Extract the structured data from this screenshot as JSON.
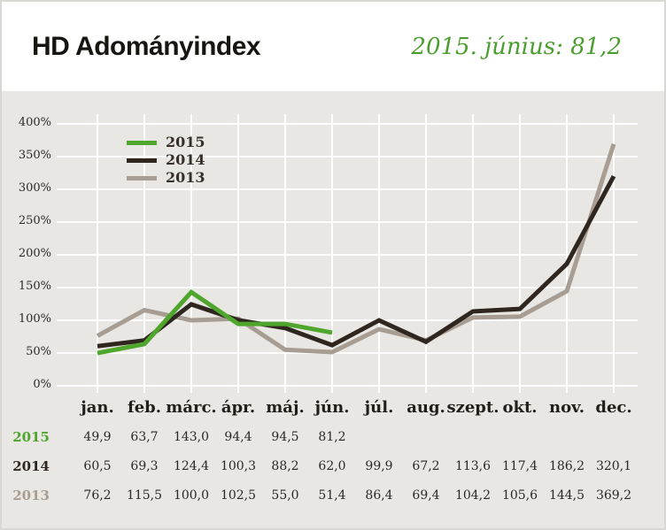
{
  "header": {
    "title": "HD Adományindex",
    "period": "2015. június: 81,2"
  },
  "colors": {
    "page_bg": "#e9e7e4",
    "header_bg": "#ffffff",
    "grid": "#ffffff",
    "text_dark": "#2b2925",
    "accent_green": "#4a9e2d"
  },
  "chart_data": {
    "type": "line",
    "title": "HD Adományindex",
    "categories": [
      "jan.",
      "feb.",
      "márc.",
      "ápr.",
      "máj.",
      "jún.",
      "júl.",
      "aug.",
      "szept.",
      "okt.",
      "nov.",
      "dec."
    ],
    "series": [
      {
        "name": "2015",
        "color": "#4fa62c",
        "values": [
          49.9,
          63.7,
          143.0,
          94.4,
          94.5,
          81.2,
          null,
          null,
          null,
          null,
          null,
          null
        ]
      },
      {
        "name": "2014",
        "color": "#2f2620",
        "values": [
          60.5,
          69.3,
          124.4,
          100.3,
          88.2,
          62.0,
          99.9,
          67.2,
          113.6,
          117.4,
          186.2,
          320.1
        ]
      },
      {
        "name": "2013",
        "color": "#a79d92",
        "values": [
          76.2,
          115.5,
          100.0,
          102.5,
          55.0,
          51.4,
          86.4,
          69.4,
          104.2,
          105.6,
          144.5,
          369.2
        ]
      }
    ],
    "y_ticks": [
      400,
      350,
      300,
      250,
      200,
      150,
      100,
      50,
      0
    ],
    "y_tick_suffix": "%",
    "ylim": [
      0,
      400
    ],
    "grid": true,
    "legend_position": "top-left",
    "legend_entries": [
      "2015",
      "2014",
      "2013"
    ]
  }
}
